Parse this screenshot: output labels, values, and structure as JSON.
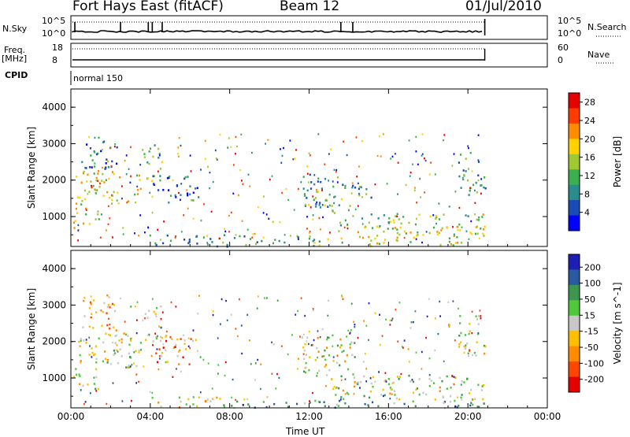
{
  "header": {
    "station": "Fort Hays East (fitACF)",
    "beam": "Beam 12",
    "date": "01/Jul/2010"
  },
  "aux_panels": {
    "nsky_label": "N.Sky",
    "nsky_ticks": [
      "10^5",
      "10^0"
    ],
    "nsearch_label": "N.Search",
    "nsearch_ticks": [
      "10^5",
      "10^0"
    ],
    "freq_label": "Freq.",
    "freq_unit": "[MHz]",
    "freq_ticks": [
      "18",
      "8"
    ],
    "nave_label": "Nave",
    "nave_ticks": [
      "60",
      "0"
    ],
    "cpid_label": "CPID",
    "cpid_value": "normal 150"
  },
  "chart_data": [
    {
      "type": "heatmap",
      "title": "",
      "quantity": "Power",
      "xlabel": "Time UT",
      "ylabel": "Slant Range [km]",
      "x_ticks": [
        "00:00",
        "04:00",
        "08:00",
        "12:00",
        "16:00",
        "20:00",
        "00:00"
      ],
      "xlim_hours": [
        0,
        24
      ],
      "y_ticks": [
        1000,
        2000,
        3000,
        4000
      ],
      "ylim_km": [
        180,
        4500
      ],
      "data_end_hour": 20.85,
      "colorbar": {
        "label": "Power [dB]",
        "ticks": [
          "4",
          "8",
          "12",
          "16",
          "20",
          "24",
          "28"
        ],
        "range": [
          0,
          30
        ]
      },
      "regions": [
        {
          "t0": 0.1,
          "t1": 1.4,
          "r0": 700,
          "r1": 1300,
          "level": 4.5
        },
        {
          "t0": 0.2,
          "t1": 3.5,
          "r0": 1300,
          "r1": 2300,
          "level": 4.8
        },
        {
          "t0": 3.5,
          "t1": 4.6,
          "r0": 2000,
          "r1": 3000,
          "level": 3.0
        },
        {
          "t0": 0.5,
          "t1": 2.3,
          "r0": 2300,
          "r1": 3300,
          "level": 1.6
        },
        {
          "t0": 4.1,
          "t1": 6.4,
          "r0": 1400,
          "r1": 2200,
          "level": 1.8
        },
        {
          "t0": 3.8,
          "t1": 9.0,
          "r0": 200,
          "r1": 520,
          "level": 2.2
        },
        {
          "t0": 9.0,
          "t1": 13.0,
          "r0": 200,
          "r1": 500,
          "level": 3.2
        },
        {
          "t0": 13.0,
          "t1": 20.85,
          "r0": 200,
          "r1": 750,
          "level": 4.5
        },
        {
          "t0": 13.5,
          "t1": 20.85,
          "r0": 750,
          "r1": 1100,
          "level": 3.6
        },
        {
          "t0": 11.6,
          "t1": 14.3,
          "r0": 1100,
          "r1": 2200,
          "level": 2.8
        },
        {
          "t0": 14.0,
          "t1": 15.3,
          "r0": 1500,
          "r1": 1900,
          "level": 2.6
        },
        {
          "t0": 19.5,
          "t1": 20.85,
          "r0": 1600,
          "r1": 2800,
          "level": 2.5
        }
      ]
    },
    {
      "type": "heatmap",
      "title": "",
      "quantity": "Velocity",
      "xlabel": "Time UT",
      "ylabel": "Slant Range [km]",
      "x_ticks": [
        "00:00",
        "04:00",
        "08:00",
        "12:00",
        "16:00",
        "20:00",
        "00:00"
      ],
      "xlim_hours": [
        0,
        24
      ],
      "y_ticks": [
        1000,
        2000,
        3000,
        4000
      ],
      "ylim_km": [
        180,
        4500
      ],
      "data_end_hour": 20.85,
      "colorbar": {
        "label": "Velocity [m s^-1]",
        "ticks": [
          "200",
          "100",
          "50",
          "15",
          "-15",
          "-50",
          "-100",
          "-200"
        ],
        "range": [
          -250,
          250
        ]
      },
      "regions": [
        {
          "t0": 0.1,
          "t1": 1.4,
          "r0": 700,
          "r1": 1300,
          "level": 4.0
        },
        {
          "t0": 0.2,
          "t1": 3.5,
          "r0": 1300,
          "r1": 2300,
          "level": 4.0
        },
        {
          "t0": 3.5,
          "t1": 4.6,
          "r0": 2000,
          "r1": 3000,
          "level": 3.0
        },
        {
          "t0": 0.5,
          "t1": 2.3,
          "r0": 2300,
          "r1": 3300,
          "level": 5.5
        },
        {
          "t0": 4.1,
          "t1": 6.4,
          "r0": 1400,
          "r1": 2200,
          "level": 5.8
        },
        {
          "t0": 4.0,
          "t1": 7.5,
          "r0": 200,
          "r1": 520,
          "level": 5.0
        },
        {
          "t0": 7.5,
          "t1": 20.85,
          "r0": 200,
          "r1": 420,
          "level": 2.4
        },
        {
          "t0": 13.0,
          "t1": 20.85,
          "r0": 420,
          "r1": 1100,
          "level": 4.0
        },
        {
          "t0": 11.6,
          "t1": 14.3,
          "r0": 1100,
          "r1": 2200,
          "level": 4.0
        },
        {
          "t0": 19.5,
          "t1": 20.85,
          "r0": 1600,
          "r1": 2800,
          "level": 4.0
        }
      ]
    }
  ],
  "colors": {
    "power": [
      "#0000ff",
      "#1a4ab4",
      "#2a8c8c",
      "#3cb050",
      "#a0c832",
      "#ffd200",
      "#ff8c00",
      "#ff3c00",
      "#e60000"
    ],
    "velocity": [
      "#1e1eb4",
      "#2a5aa0",
      "#3c9650",
      "#50c83c",
      "#c8c8c8",
      "#ffbe00",
      "#ff8c00",
      "#ff4600",
      "#e60000"
    ]
  }
}
